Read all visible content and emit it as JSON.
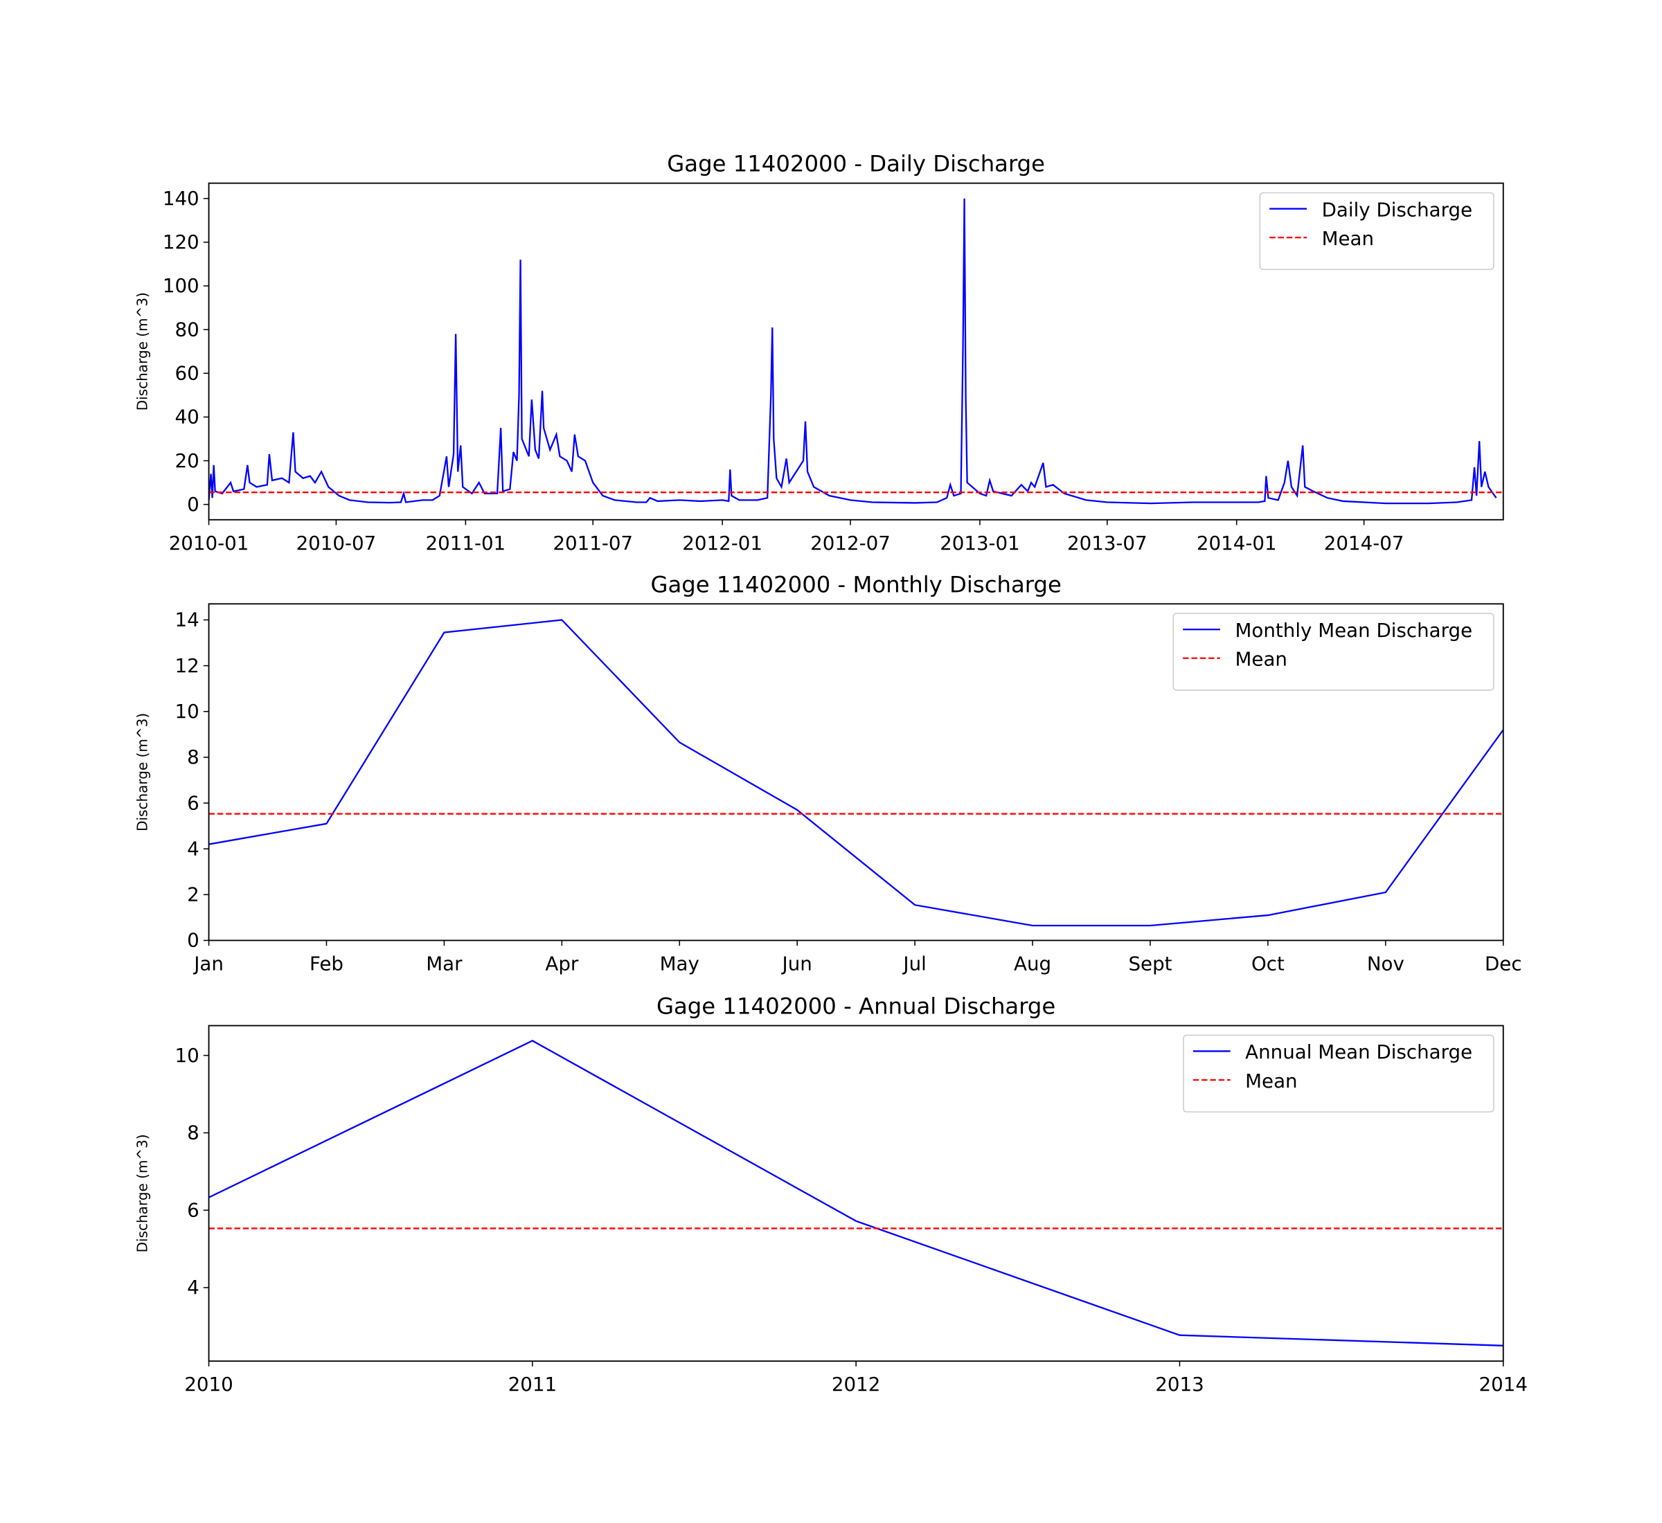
{
  "chart_data": [
    {
      "type": "line",
      "title": "Gage 11402000 - Daily Discharge",
      "y_label": "Discharge (m^3)",
      "x": [
        "2010-01-01",
        "2010-01-04",
        "2010-01-06",
        "2010-01-08",
        "2010-01-10",
        "2010-01-20",
        "2010-02-01",
        "2010-02-05",
        "2010-02-20",
        "2010-02-25",
        "2010-02-28",
        "2010-03-10",
        "2010-03-25",
        "2010-03-28",
        "2010-04-01",
        "2010-04-15",
        "2010-04-25",
        "2010-05-01",
        "2010-05-04",
        "2010-05-15",
        "2010-05-25",
        "2010-06-01",
        "2010-06-10",
        "2010-06-20",
        "2010-07-05",
        "2010-07-20",
        "2010-08-15",
        "2010-09-15",
        "2010-10-01",
        "2010-10-05",
        "2010-10-08",
        "2010-11-01",
        "2010-11-15",
        "2010-11-25",
        "2010-12-05",
        "2010-12-08",
        "2010-12-15",
        "2010-12-18",
        "2010-12-21",
        "2010-12-25",
        "2010-12-28",
        "2011-01-10",
        "2011-01-20",
        "2011-01-28",
        "2011-02-15",
        "2011-02-20",
        "2011-02-23",
        "2011-03-05",
        "2011-03-10",
        "2011-03-15",
        "2011-03-18",
        "2011-03-20",
        "2011-03-22",
        "2011-04-01",
        "2011-04-05",
        "2011-04-10",
        "2011-04-15",
        "2011-04-20",
        "2011-04-22",
        "2011-05-01",
        "2011-05-10",
        "2011-05-15",
        "2011-05-25",
        "2011-06-01",
        "2011-06-05",
        "2011-06-10",
        "2011-06-20",
        "2011-07-01",
        "2011-07-15",
        "2011-08-01",
        "2011-09-01",
        "2011-09-15",
        "2011-09-20",
        "2011-10-01",
        "2011-11-01",
        "2011-12-01",
        "2012-01-01",
        "2012-01-10",
        "2012-01-12",
        "2012-01-14",
        "2012-01-25",
        "2012-02-20",
        "2012-03-05",
        "2012-03-10",
        "2012-03-12",
        "2012-03-14",
        "2012-03-18",
        "2012-03-25",
        "2012-04-01",
        "2012-04-05",
        "2012-04-15",
        "2012-04-25",
        "2012-04-28",
        "2012-05-01",
        "2012-05-10",
        "2012-06-01",
        "2012-07-01",
        "2012-08-01",
        "2012-10-01",
        "2012-11-01",
        "2012-11-15",
        "2012-11-20",
        "2012-11-25",
        "2012-12-05",
        "2012-12-08",
        "2012-12-10",
        "2012-12-12",
        "2012-12-14",
        "2013-01-01",
        "2013-01-10",
        "2013-01-15",
        "2013-01-20",
        "2013-02-15",
        "2013-03-01",
        "2013-03-10",
        "2013-03-15",
        "2013-03-20",
        "2013-04-01",
        "2013-04-05",
        "2013-04-15",
        "2013-05-01",
        "2013-06-01",
        "2013-07-01",
        "2013-09-01",
        "2013-11-01",
        "2014-01-01",
        "2014-02-01",
        "2014-02-10",
        "2014-02-12",
        "2014-02-15",
        "2014-03-01",
        "2014-03-10",
        "2014-03-15",
        "2014-03-20",
        "2014-03-28",
        "2014-04-05",
        "2014-04-08",
        "2014-04-20",
        "2014-05-10",
        "2014-06-01",
        "2014-08-01",
        "2014-10-01",
        "2014-11-10",
        "2014-12-01",
        "2014-12-05",
        "2014-12-08",
        "2014-12-12",
        "2014-12-15",
        "2014-12-20",
        "2014-12-25",
        "2015-01-05"
      ],
      "series": [
        {
          "name": "Daily Discharge",
          "color": "#0000ff",
          "values": [
            2,
            14,
            3,
            18,
            6,
            5,
            10,
            6,
            7,
            18,
            10,
            8,
            9,
            23,
            11,
            12,
            10,
            33,
            15,
            12,
            13,
            10,
            15,
            8,
            4,
            2,
            1,
            0.8,
            1,
            5,
            1,
            2,
            2,
            4,
            22,
            8,
            23,
            78,
            15,
            27,
            8,
            5,
            10,
            5,
            5,
            35,
            6,
            7,
            24,
            20,
            50,
            112,
            30,
            22,
            48,
            25,
            21,
            52,
            35,
            25,
            32,
            22,
            20,
            15,
            32,
            22,
            20,
            10,
            4,
            2,
            1,
            1,
            3,
            1.5,
            2,
            1.5,
            2,
            1.5,
            16,
            4,
            2,
            2,
            3,
            50,
            81,
            30,
            12,
            8,
            21,
            10,
            15,
            20,
            38,
            15,
            8,
            4,
            2,
            1,
            0.7,
            1,
            3,
            9,
            4,
            5,
            71,
            140,
            48,
            10,
            5,
            4,
            11,
            6,
            4,
            9,
            6,
            10,
            8,
            19,
            8,
            9,
            5,
            2,
            1,
            0.5,
            1,
            1,
            1,
            1.5,
            13,
            3,
            2,
            10,
            20,
            8,
            4,
            27,
            8,
            6,
            3,
            1.5,
            0.5,
            0.5,
            1,
            2,
            17,
            4,
            29,
            8,
            15,
            8,
            3
          ]
        }
      ],
      "hlines": [
        {
          "name": "Mean",
          "color": "#ff0000",
          "value": 5.53
        }
      ],
      "xlim": [
        "2010-01-01",
        "2015-01-15"
      ],
      "xticks": [
        {
          "value": "2010-01-01",
          "label": "2010-01"
        },
        {
          "value": "2010-07-01",
          "label": "2010-07"
        },
        {
          "value": "2011-01-01",
          "label": "2011-01"
        },
        {
          "value": "2011-07-01",
          "label": "2011-07"
        },
        {
          "value": "2012-01-01",
          "label": "2012-01"
        },
        {
          "value": "2012-07-01",
          "label": "2012-07"
        },
        {
          "value": "2013-01-01",
          "label": "2013-01"
        },
        {
          "value": "2013-07-01",
          "label": "2013-07"
        },
        {
          "value": "2014-01-01",
          "label": "2014-01"
        },
        {
          "value": "2014-07-01",
          "label": "2014-07"
        }
      ],
      "ylim": [
        -7,
        147
      ],
      "yticks": [
        0,
        20,
        40,
        60,
        80,
        100,
        120,
        140
      ],
      "legend": "upper right"
    },
    {
      "type": "line",
      "title": "Gage 11402000 - Monthly Discharge",
      "y_label": "Discharge (m^3)",
      "categories": [
        "Jan",
        "Feb",
        "Mar",
        "Apr",
        "May",
        "Jun",
        "Jul",
        "Aug",
        "Sept",
        "Oct",
        "Nov",
        "Dec"
      ],
      "series": [
        {
          "name": "Monthly Mean Discharge",
          "color": "#0000ff",
          "values": [
            4.2,
            5.1,
            13.45,
            14.0,
            8.65,
            5.7,
            1.55,
            0.65,
            0.65,
            1.1,
            2.1,
            9.2
          ]
        }
      ],
      "hlines": [
        {
          "name": "Mean",
          "color": "#ff0000",
          "value": 5.53
        }
      ],
      "ylim": [
        0,
        14.7
      ],
      "yticks": [
        0,
        2,
        4,
        6,
        8,
        10,
        12,
        14
      ],
      "legend": "upper right"
    },
    {
      "type": "line",
      "title": "Gage 11402000 - Annual Discharge",
      "y_label": "Discharge (m^3)",
      "x": [
        2010,
        2011,
        2012,
        2013,
        2014
      ],
      "series": [
        {
          "name": "Annual Mean Discharge",
          "color": "#0000ff",
          "values": [
            6.33,
            10.38,
            5.72,
            2.77,
            2.5
          ]
        }
      ],
      "hlines": [
        {
          "name": "Mean",
          "color": "#ff0000",
          "value": 5.53
        }
      ],
      "xlim": [
        2010,
        2014
      ],
      "xticks": [
        2010,
        2011,
        2012,
        2013,
        2014
      ],
      "ylim": [
        2.1,
        10.77
      ],
      "yticks": [
        4,
        6,
        8,
        10
      ],
      "legend": "upper right"
    }
  ]
}
